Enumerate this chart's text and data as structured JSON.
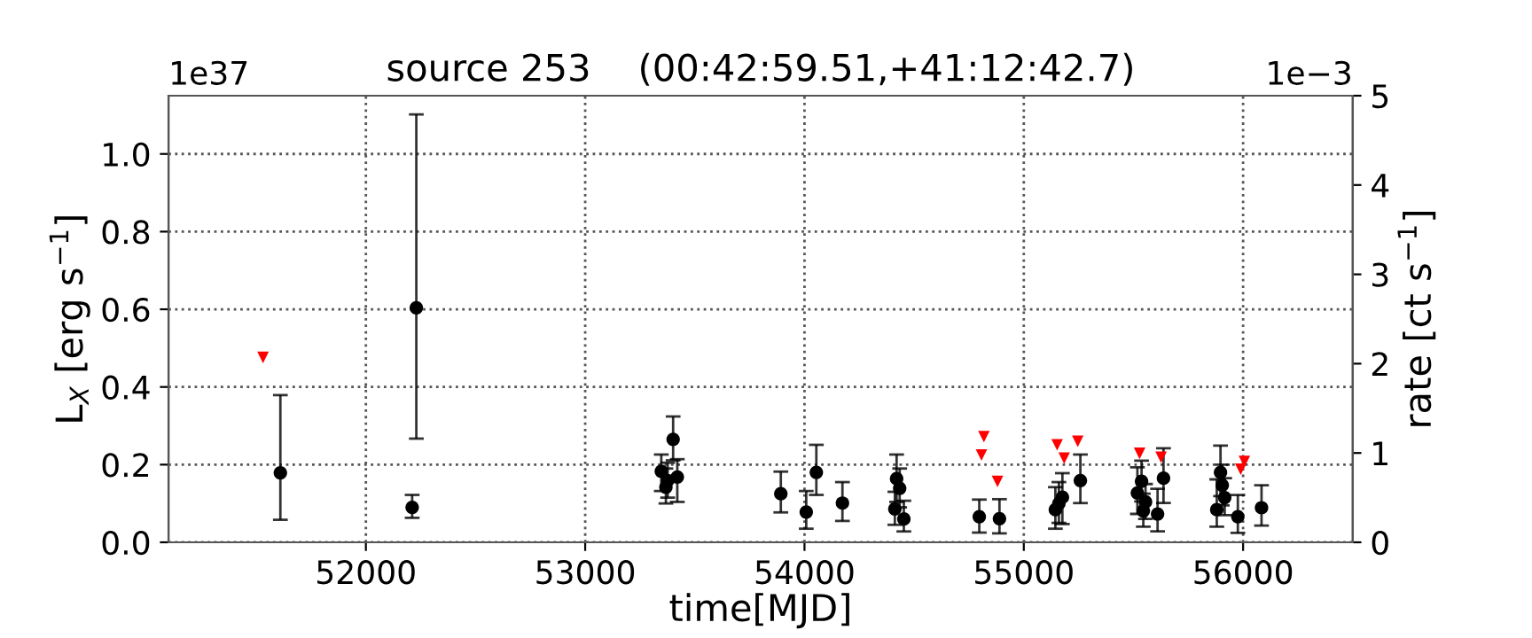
{
  "chart_data": {
    "type": "scatter",
    "title": "source 253    (00:42:59.51,+41:12:42.7)",
    "xlabel": "time[MJD]",
    "ylabel": "L$_{X}$ [erg s$^{−1}$]",
    "y2label": "rate [ct s$^{−1}$]",
    "annotations": [
      "1e37",
      "1e−3"
    ],
    "xlim": [
      51100,
      56500
    ],
    "xticks": [
      52000,
      53000,
      54000,
      55000,
      56000
    ],
    "ylim": [
      0,
      1.15
    ],
    "yticks": [
      {
        "value": 0,
        "label": "0.0"
      },
      {
        "value": 0.2,
        "label": "0.2"
      },
      {
        "value": 0.4,
        "label": "0.4"
      },
      {
        "value": 0.6,
        "label": "0.6"
      },
      {
        "value": 0.8,
        "label": "0.8"
      },
      {
        "value": 1.0,
        "label": "1.0"
      }
    ],
    "y2lim": [
      0,
      5
    ],
    "y2ticks": [
      0,
      1,
      2,
      3,
      4,
      5
    ],
    "grid": true,
    "legend": false,
    "series": [
      {
        "color": "#000000",
        "marker": "circle",
        "x": [
          51610,
          52211,
          52230,
          53347,
          53368,
          53376,
          53401,
          53420,
          53892,
          54008,
          54054,
          54173,
          54412,
          54420,
          54434,
          54453,
          54786,
          54797,
          54889,
          55144,
          55160,
          55176,
          55258,
          55518,
          55537,
          55545,
          55555,
          55610,
          55637,
          55880,
          55897,
          55905,
          55916,
          55976,
          56084
        ],
        "values": [
          0.179,
          0.09,
          0.604,
          0.183,
          0.142,
          0.159,
          0.265,
          0.168,
          0.125,
          0.078,
          0.18,
          0.101,
          0.086,
          0.164,
          0.139,
          0.06,
          null,
          0.066,
          0.061,
          0.084,
          0.1,
          0.116,
          0.159,
          0.127,
          0.157,
          0.081,
          0.104,
          0.073,
          0.165,
          0.084,
          0.18,
          0.147,
          0.115,
          0.066,
          0.089
        ],
        "errors": [
          [
            0.058,
            0.379
          ],
          [
            0.063,
            0.122
          ],
          [
            0.267,
            1.102
          ],
          [
            0.132,
            0.226
          ],
          [
            0.1,
            0.19
          ],
          [
            0.115,
            0.205
          ],
          [
            0.211,
            0.324
          ],
          [
            0.104,
            0.214
          ],
          [
            0.077,
            0.182
          ],
          [
            0.035,
            0.132
          ],
          [
            0.122,
            0.251
          ],
          [
            0.055,
            0.155
          ],
          [
            0.045,
            0.13
          ],
          [
            0.104,
            0.226
          ],
          [
            0.09,
            0.19
          ],
          [
            0.028,
            0.107
          ],
          null,
          [
            0.025,
            0.11
          ],
          [
            0.023,
            0.111
          ],
          [
            0.035,
            0.142
          ],
          [
            0.05,
            0.155
          ],
          [
            0.047,
            0.178
          ],
          [
            0.101,
            0.226
          ],
          [
            0.073,
            0.193
          ],
          [
            0.105,
            0.21
          ],
          [
            0.04,
            0.125
          ],
          [
            0.06,
            0.15
          ],
          [
            0.028,
            0.138
          ],
          [
            0.101,
            0.242
          ],
          [
            0.04,
            0.162
          ],
          [
            0.119,
            0.249
          ],
          [
            0.095,
            0.2
          ],
          [
            0.07,
            0.165
          ],
          [
            0.024,
            0.122
          ],
          [
            0.043,
            0.147
          ]
        ]
      },
      {
        "color": "#ff0000",
        "marker": "triangle",
        "x": [
          51531,
          54807,
          54818,
          54880,
          55152,
          55184,
          55246,
          55528,
          55626,
          55989,
          56006
        ],
        "values": [
          0.476,
          0.225,
          0.272,
          0.157,
          0.251,
          0.217,
          0.26,
          0.229,
          0.219,
          0.188,
          0.208
        ]
      }
    ]
  }
}
